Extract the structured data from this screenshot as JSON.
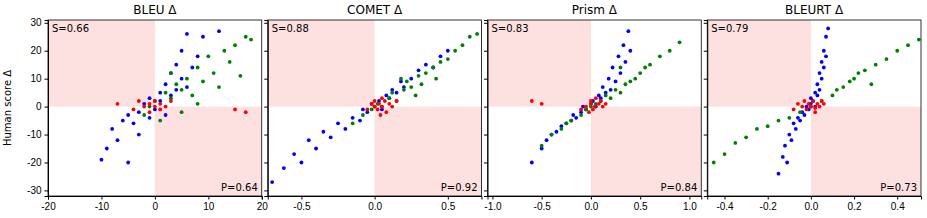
{
  "chart_data": [
    {
      "type": "scatter",
      "title": "BLEU Δ",
      "ylabel": "Human score Δ",
      "annotations": [
        "S=0.66",
        "P=0.64"
      ],
      "xlim": [
        -20,
        20
      ],
      "xticks": [
        -20,
        -10,
        0,
        10,
        20
      ],
      "ylim": [
        -32,
        31
      ],
      "yticks": [
        -30,
        -20,
        -10,
        0,
        10,
        20,
        30
      ],
      "series": [
        {
          "color": "#0000ff",
          "x": [
            -10,
            -9,
            -8,
            -7,
            -6,
            -5,
            -5,
            -4,
            -3,
            -3,
            -2,
            -1,
            -1,
            0,
            1,
            1,
            2,
            2,
            3,
            3,
            4,
            4,
            5,
            5,
            6,
            6,
            7,
            8,
            9,
            12
          ],
          "values": [
            -19,
            -15,
            -8,
            -12,
            -5,
            -20,
            -3,
            -6,
            -2,
            -10,
            1,
            -4,
            3,
            -1,
            2,
            5,
            -3,
            8,
            4,
            12,
            6,
            15,
            10,
            20,
            7,
            26,
            14,
            18,
            25,
            27
          ]
        },
        {
          "color": "#008000",
          "x": [
            -2,
            -1,
            0,
            1,
            2,
            3,
            4,
            5,
            6,
            7,
            8,
            9,
            10,
            11,
            12,
            13,
            14,
            15,
            16,
            17,
            18,
            5,
            8,
            3
          ],
          "values": [
            -3,
            0,
            2,
            -5,
            5,
            3,
            8,
            6,
            10,
            4,
            14,
            9,
            18,
            12,
            7,
            20,
            16,
            22,
            11,
            25,
            24,
            -2,
            1,
            12
          ]
        },
        {
          "color": "#ff0000",
          "x": [
            -7,
            -4,
            -3,
            -2,
            -1,
            -1,
            0,
            0,
            1,
            1,
            2,
            3,
            15,
            17
          ],
          "values": [
            1,
            -1,
            2,
            0,
            1,
            -2,
            0,
            2,
            -1,
            1,
            0,
            2,
            -1,
            -2
          ]
        }
      ]
    },
    {
      "type": "scatter",
      "title": "COMET Δ",
      "tick_labels": "x",
      "annotations": [
        "S=0.88",
        "P=0.92"
      ],
      "xlim": [
        -0.73,
        0.73
      ],
      "xticks": [
        -0.5,
        {
          "value": 0,
          "label": "0.0"
        },
        0.5
      ],
      "ylim": [
        -32,
        31
      ],
      "yticks": [
        -30,
        -20,
        -10,
        0,
        10,
        20,
        30
      ],
      "series": [
        {
          "color": "#0000ff",
          "x": [
            -0.7,
            -0.62,
            -0.55,
            -0.5,
            -0.45,
            -0.4,
            -0.35,
            -0.3,
            -0.25,
            -0.2,
            -0.15,
            -0.1,
            -0.08,
            -0.05,
            -0.02,
            0,
            0.03,
            0.05,
            0.08,
            0.1,
            0.12,
            0.15,
            0.18,
            0.2,
            0.25,
            0.3,
            0.35,
            0.4,
            0.45,
            0.5
          ],
          "values": [
            -27,
            -22,
            -17,
            -20,
            -12,
            -15,
            -9,
            -11,
            -6,
            -8,
            -4,
            -5,
            -1,
            -2,
            1,
            0,
            2,
            -1,
            4,
            3,
            6,
            5,
            9,
            7,
            10,
            13,
            15,
            14,
            18,
            20
          ]
        },
        {
          "color": "#008000",
          "x": [
            -0.15,
            -0.08,
            -0.02,
            0.02,
            0.05,
            0.1,
            0.12,
            0.15,
            0.2,
            0.22,
            0.25,
            0.3,
            0.32,
            0.35,
            0.4,
            0.42,
            0.45,
            0.5,
            0.55,
            0.6,
            0.65,
            0.7,
            0.28,
            0.18
          ],
          "values": [
            -6,
            -3,
            -1,
            1,
            0,
            3,
            5,
            2,
            6,
            9,
            7,
            11,
            8,
            12,
            14,
            10,
            16,
            17,
            20,
            22,
            25,
            26,
            4,
            10
          ]
        },
        {
          "color": "#ff0000",
          "x": [
            -0.05,
            -0.02,
            0,
            0,
            0.02,
            0.03,
            0.05,
            0.05,
            0.07,
            0.08,
            0.1,
            0.12,
            0.15,
            0.04
          ],
          "values": [
            -1,
            1,
            0,
            2,
            -1,
            1,
            3,
            0,
            2,
            -2,
            1,
            0,
            2,
            -3
          ]
        }
      ]
    },
    {
      "type": "scatter",
      "title": "Prism Δ",
      "tick_labels": "x",
      "annotations": [
        "S=0.83",
        "P=0.84"
      ],
      "xlim": [
        -1.05,
        1.12
      ],
      "xticks": [
        {
          "value": -1,
          "label": "-1.0"
        },
        -0.5,
        {
          "value": 0,
          "label": "0.0"
        },
        0.5,
        {
          "value": 1,
          "label": "1.0"
        }
      ],
      "ylim": [
        -32,
        31
      ],
      "yticks": [
        -30,
        -20,
        -10,
        0,
        10,
        20,
        30
      ],
      "series": [
        {
          "color": "#0000ff",
          "x": [
            -0.6,
            -0.5,
            -0.45,
            -0.4,
            -0.35,
            -0.3,
            -0.25,
            -0.2,
            -0.18,
            -0.15,
            -0.1,
            -0.08,
            -0.05,
            0,
            0.02,
            0.05,
            0.08,
            0.1,
            0.12,
            0.15,
            0.18,
            0.2,
            0.22,
            0.25,
            0.28,
            0.3,
            0.33,
            0.35,
            0.38,
            0.4
          ],
          "values": [
            -20,
            -15,
            -12,
            -10,
            -9,
            -7,
            -6,
            -5,
            -3,
            -4,
            -2,
            0,
            -1,
            1,
            2,
            0,
            4,
            3,
            7,
            5,
            10,
            6,
            14,
            9,
            18,
            12,
            22,
            16,
            27,
            20
          ]
        },
        {
          "color": "#008000",
          "x": [
            -0.5,
            -0.4,
            -0.3,
            -0.25,
            -0.2,
            -0.1,
            -0.05,
            0,
            0.05,
            0.1,
            0.15,
            0.2,
            0.25,
            0.3,
            0.35,
            0.4,
            0.45,
            0.5,
            0.55,
            0.6,
            0.7,
            0.8,
            0.9,
            0.3
          ],
          "values": [
            -14,
            -10,
            -8,
            -6,
            -5,
            -3,
            -1,
            0,
            1,
            2,
            4,
            3,
            6,
            5,
            8,
            9,
            10,
            12,
            14,
            15,
            18,
            20,
            23,
            14
          ]
        },
        {
          "color": "#ff0000",
          "x": [
            -0.6,
            -0.5,
            -0.1,
            -0.05,
            0,
            0,
            0.02,
            0.04,
            0.05,
            0.08,
            0.1,
            0.12,
            0.15,
            -0.02
          ],
          "values": [
            2,
            1,
            -1,
            0,
            1,
            2,
            -1,
            0,
            3,
            1,
            2,
            0,
            1,
            -2
          ]
        }
      ]
    },
    {
      "type": "scatter",
      "title": "BLEURT Δ",
      "tick_labels": "x",
      "annotations": [
        "S=0.79",
        "P=0.73"
      ],
      "xlim": [
        -0.48,
        0.51
      ],
      "xticks": [
        -0.4,
        -0.2,
        {
          "value": 0,
          "label": "0.0"
        },
        0.2,
        0.4
      ],
      "ylim": [
        -32,
        31
      ],
      "yticks": [
        -30,
        -20,
        -10,
        0,
        10,
        20,
        30
      ],
      "series": [
        {
          "color": "#0000ff",
          "x": [
            -0.15,
            -0.13,
            -0.12,
            -0.1,
            -0.09,
            -0.08,
            -0.07,
            -0.06,
            -0.05,
            -0.04,
            -0.03,
            -0.02,
            -0.01,
            0,
            0,
            0.01,
            0.02,
            0.02,
            0.03,
            0.03,
            0.04,
            0.04,
            0.05,
            0.05,
            0.06,
            0.06,
            0.07,
            0.07,
            0.08,
            -0.11
          ],
          "values": [
            -24,
            -18,
            -14,
            -10,
            -12,
            -6,
            -8,
            -4,
            -5,
            -2,
            -3,
            0,
            -1,
            1,
            3,
            2,
            5,
            0,
            8,
            4,
            12,
            6,
            16,
            10,
            20,
            14,
            25,
            18,
            28,
            -20
          ]
        },
        {
          "color": "#008000",
          "x": [
            -0.45,
            -0.4,
            -0.35,
            -0.3,
            -0.25,
            -0.2,
            -0.15,
            -0.1,
            -0.05,
            0,
            0.05,
            0.1,
            0.12,
            0.15,
            0.18,
            0.2,
            0.22,
            0.25,
            0.3,
            0.35,
            0.4,
            0.45,
            0.5,
            0.28
          ],
          "values": [
            -20,
            -17,
            -13,
            -11,
            -8,
            -7,
            -5,
            -4,
            -2,
            0,
            2,
            4,
            6,
            7,
            9,
            10,
            12,
            13,
            15,
            17,
            20,
            22,
            24,
            8
          ]
        },
        {
          "color": "#ff0000",
          "x": [
            -0.08,
            -0.06,
            -0.04,
            -0.03,
            -0.02,
            -0.01,
            0,
            0.01,
            0.02,
            0.03,
            0.04,
            0.05,
            0.06,
            0.02
          ],
          "values": [
            -1,
            1,
            0,
            2,
            -1,
            1,
            0,
            2,
            -2,
            1,
            0,
            2,
            1,
            -0.5
          ]
        }
      ]
    }
  ]
}
